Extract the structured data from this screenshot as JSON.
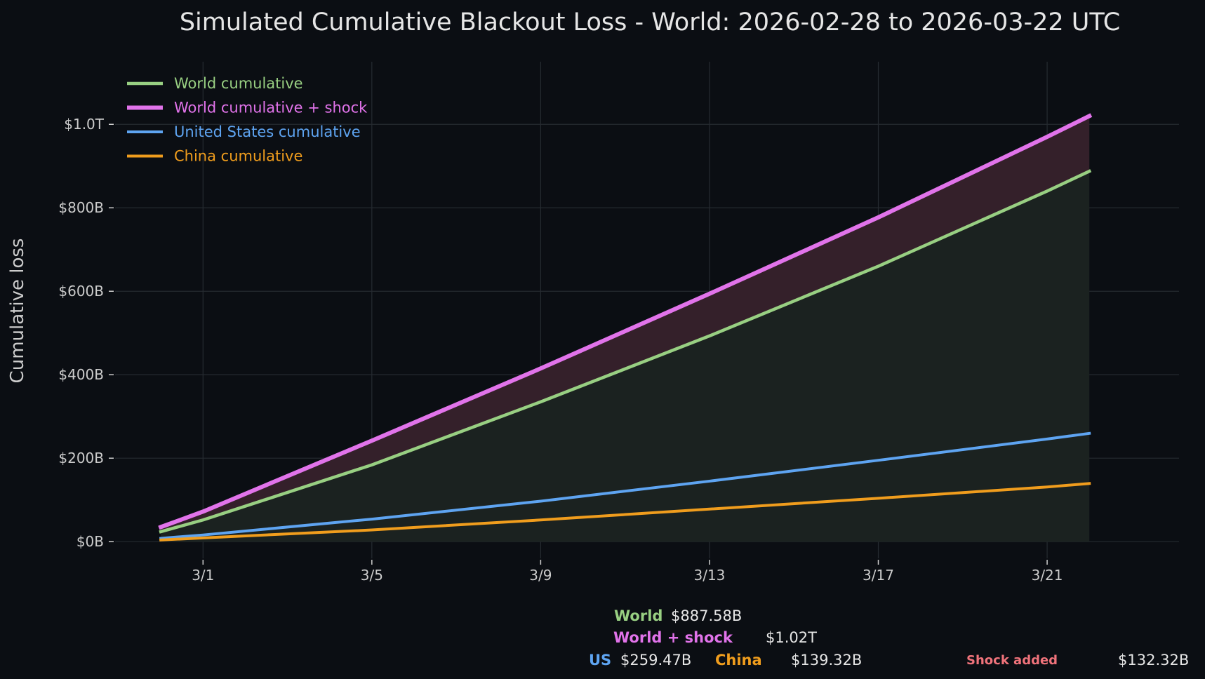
{
  "chart_data": {
    "type": "line",
    "title": "Simulated Cumulative Blackout Loss - World: 2026-02-28 to 2026-03-22 UTC",
    "xlabel": "",
    "ylabel": "Cumulative loss",
    "x_start": "2026-02-28",
    "x_end": "2026-03-22",
    "xlim": [
      "2026-02-26T22:00",
      "2026-03-24T03:00"
    ],
    "x_ticks": [
      {
        "date": "2026-03-01",
        "label": "3/1"
      },
      {
        "date": "2026-03-05",
        "label": "3/5"
      },
      {
        "date": "2026-03-09",
        "label": "3/9"
      },
      {
        "date": "2026-03-13",
        "label": "3/13"
      },
      {
        "date": "2026-03-17",
        "label": "3/17"
      },
      {
        "date": "2026-03-21",
        "label": "3/21"
      }
    ],
    "ylim": [
      -40,
      1150
    ],
    "y_ticks": [
      {
        "value": 0,
        "label": "$0B"
      },
      {
        "value": 200,
        "label": "$200B"
      },
      {
        "value": 400,
        "label": "$400B"
      },
      {
        "value": 600,
        "label": "$600B"
      },
      {
        "value": 800,
        "label": "$800B"
      },
      {
        "value": 1000,
        "label": "$1.0T"
      }
    ],
    "y_unit": "$B",
    "grid": true,
    "legend_position": "top-left",
    "series": [
      {
        "name": "World cumulative",
        "color": "#98cf82",
        "x": [
          "2026-02-28",
          "2026-03-01",
          "2026-03-05",
          "2026-03-09",
          "2026-03-13",
          "2026-03-17",
          "2026-03-21",
          "2026-03-22"
        ],
        "y": [
          24,
          52,
          184,
          335,
          493,
          660,
          840,
          887.58
        ]
      },
      {
        "name": "World cumulative + shock",
        "color": "#e173ea",
        "x": [
          "2026-02-28",
          "2026-03-01",
          "2026-03-05",
          "2026-03-09",
          "2026-03-13",
          "2026-03-17",
          "2026-03-21",
          "2026-03-22"
        ],
        "y": [
          35,
          72,
          242,
          415,
          594,
          777,
          970,
          1020
        ]
      },
      {
        "name": "United States cumulative",
        "color": "#5ea4f1",
        "x": [
          "2026-02-28",
          "2026-03-01",
          "2026-03-05",
          "2026-03-09",
          "2026-03-13",
          "2026-03-17",
          "2026-03-21",
          "2026-03-22"
        ],
        "y": [
          8,
          16,
          54,
          97,
          145,
          195,
          246,
          259.47
        ]
      },
      {
        "name": "China cumulative",
        "color": "#f09d1d",
        "x": [
          "2026-02-28",
          "2026-03-01",
          "2026-03-05",
          "2026-03-09",
          "2026-03-13",
          "2026-03-17",
          "2026-03-21",
          "2026-03-22"
        ],
        "y": [
          4,
          9,
          28,
          52,
          78,
          104,
          131,
          139.32
        ]
      }
    ],
    "fills": [
      {
        "between": [
          "World cumulative",
          "baseline"
        ],
        "color": "#1b2220"
      },
      {
        "between": [
          "World cumulative + shock",
          "World cumulative"
        ],
        "color": "#34202a"
      }
    ]
  },
  "summary": {
    "world_label": "World",
    "world_value": "$887.58B",
    "shock_label": "World + shock",
    "shock_value": "$1.02T",
    "us_label": "US",
    "us_value": "$259.47B",
    "china_label": "China",
    "china_value": "$139.32B",
    "added_label": "Shock added",
    "added_value": "$132.32B"
  },
  "colors": {
    "background": "#0b0e13",
    "text": "#e6e6e6",
    "tick_text": "#cccccc",
    "grid": "#262b31",
    "world": "#98cf82",
    "shock": "#e173ea",
    "us": "#5ea4f1",
    "china": "#f09d1d",
    "shock_added": "#f0737b"
  }
}
